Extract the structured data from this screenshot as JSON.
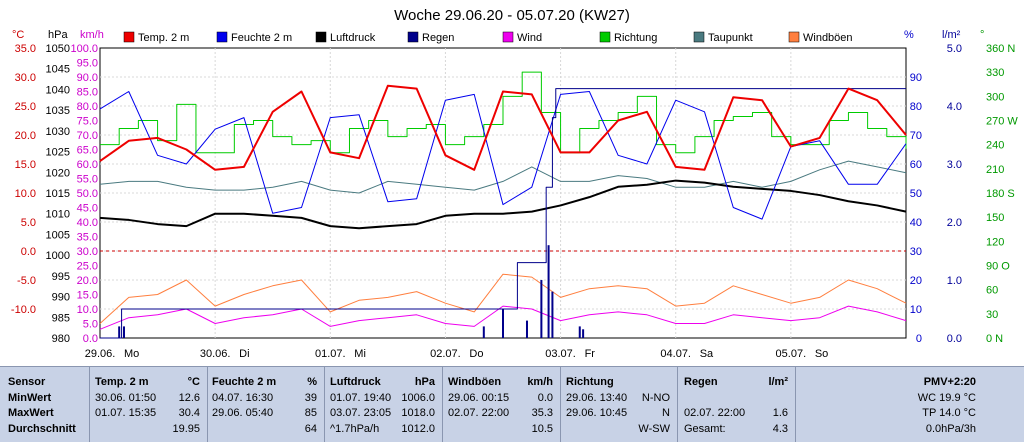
{
  "chart_data": {
    "type": "line",
    "title": "Woche 29.06.20 - 05.07.20 (KW27)",
    "x_labels": [
      "29.06.",
      "Mo",
      "30.06.",
      "Di",
      "01.07.",
      "Mi",
      "02.07.",
      "Do",
      "03.07.",
      "Fr",
      "04.07.",
      "Sa",
      "05.07.",
      "So"
    ],
    "x_range_hours": [
      0,
      168
    ],
    "axes": {
      "temp_c": {
        "unit": "°C",
        "color": "#cc0000",
        "ticks": [
          "35.0",
          "30.0",
          "25.0",
          "20.0",
          "15.0",
          "10.0",
          "5.0",
          "0.0",
          "-5.0",
          "-10.0"
        ],
        "range": [
          -15,
          35
        ]
      },
      "pressure_hpa": {
        "unit": "hPa",
        "color": "#000000",
        "ticks": [
          "1050",
          "1045",
          "1040",
          "1035",
          "1030",
          "1025",
          "1020",
          "1015",
          "1010",
          "1005",
          "1000",
          "995",
          "990",
          "985",
          "980"
        ],
        "range": [
          980,
          1050
        ]
      },
      "wind_kmh": {
        "unit": "km/h",
        "color": "#cc00cc",
        "ticks": [
          "100.0",
          "95.0",
          "90.0",
          "85.0",
          "80.0",
          "75.0",
          "70.0",
          "65.0",
          "60.0",
          "55.0",
          "50.0",
          "45.0",
          "40.0",
          "35.0",
          "30.0",
          "25.0",
          "20.0",
          "15.0",
          "10.0",
          "5.0",
          "0.0"
        ],
        "range": [
          0,
          100
        ]
      },
      "humidity_pct": {
        "unit": "%",
        "color": "#0000cc",
        "ticks": [
          "90",
          "80",
          "70",
          "60",
          "50",
          "40",
          "30",
          "20",
          "10",
          "0"
        ],
        "range": [
          0,
          100
        ]
      },
      "rain_lm2": {
        "unit": "l/m²",
        "color": "#000099",
        "ticks": [
          "5.0",
          "4.0",
          "3.0",
          "2.0",
          "1.0",
          "0.0"
        ],
        "range": [
          0,
          5
        ]
      },
      "direction_deg": {
        "unit": "°",
        "color": "#009900",
        "ticks": [
          "360 N",
          "330",
          "300",
          "270 W",
          "240",
          "210",
          "180 S",
          "150",
          "120",
          "90 O",
          "60",
          "30",
          "0 N"
        ],
        "range": [
          0,
          360
        ]
      }
    },
    "legend": [
      {
        "name": "Temp. 2 m",
        "color": "#ee0000"
      },
      {
        "name": "Feuchte 2 m",
        "color": "#0000ee"
      },
      {
        "name": "Luftdruck",
        "color": "#000000"
      },
      {
        "name": "Regen",
        "color": "#00008b"
      },
      {
        "name": "Wind",
        "color": "#ee00ee"
      },
      {
        "name": "Richtung",
        "color": "#00cc00"
      },
      {
        "name": "Taupunkt",
        "color": "#4a7a80"
      },
      {
        "name": "Windböen",
        "color": "#ff7f3f"
      }
    ],
    "series": [
      {
        "name": "Temp. 2 m",
        "axis": "temp_c",
        "x": [
          0,
          6,
          12,
          18,
          24,
          30,
          36,
          42,
          48,
          54,
          60,
          66,
          72,
          78,
          84,
          90,
          96,
          102,
          108,
          114,
          120,
          126,
          132,
          138,
          144,
          150,
          156,
          162,
          168
        ],
        "values": [
          15.5,
          19,
          19.5,
          17.5,
          14,
          14.5,
          24,
          27.5,
          17,
          16,
          28.5,
          28,
          16.5,
          14,
          27.5,
          27,
          17,
          17,
          22.5,
          24,
          14.5,
          14,
          26.5,
          26,
          18,
          19.5,
          28,
          26,
          20
        ]
      },
      {
        "name": "Feuchte 2 m",
        "axis": "humidity_pct",
        "x": [
          0,
          6,
          12,
          18,
          24,
          30,
          36,
          42,
          48,
          54,
          60,
          66,
          72,
          78,
          84,
          90,
          96,
          102,
          108,
          114,
          120,
          126,
          132,
          138,
          144,
          150,
          156,
          162,
          168
        ],
        "values": [
          79,
          85,
          63,
          60,
          72,
          76,
          43,
          45,
          76,
          77,
          47,
          48,
          82,
          84,
          46,
          52,
          84,
          85,
          63,
          60,
          82,
          78,
          45,
          41,
          66,
          68,
          53,
          53,
          67
        ]
      },
      {
        "name": "Luftdruck",
        "axis": "pressure_hpa",
        "x": [
          0,
          6,
          12,
          18,
          24,
          30,
          36,
          42,
          48,
          54,
          60,
          66,
          72,
          78,
          84,
          90,
          96,
          102,
          108,
          114,
          120,
          126,
          132,
          138,
          144,
          150,
          156,
          162,
          168
        ],
        "values": [
          1009,
          1008.5,
          1007.5,
          1007,
          1010,
          1010,
          1009.5,
          1009,
          1007,
          1006.5,
          1007,
          1007.5,
          1009.5,
          1010,
          1010,
          1010.5,
          1012,
          1014,
          1016.5,
          1017,
          1018,
          1017.5,
          1016.5,
          1016,
          1015.5,
          1014.5,
          1013,
          1012,
          1010.5
        ]
      },
      {
        "name": "Taupunkt",
        "axis": "temp_c",
        "x": [
          0,
          6,
          12,
          18,
          24,
          30,
          36,
          42,
          48,
          54,
          60,
          66,
          72,
          78,
          84,
          90,
          96,
          102,
          108,
          114,
          120,
          126,
          132,
          138,
          144,
          150,
          156,
          162,
          168
        ],
        "values": [
          11.5,
          12,
          12,
          11,
          10.5,
          10.5,
          11,
          12,
          10.5,
          10,
          12,
          11.5,
          11,
          10.5,
          12,
          14.5,
          12,
          12,
          13,
          12.5,
          11,
          11,
          12,
          11,
          12,
          14,
          15.5,
          14.5,
          13.5
        ]
      },
      {
        "name": "Richtung",
        "axis": "direction_deg",
        "x": [
          0,
          4,
          8,
          12,
          16,
          20,
          24,
          28,
          32,
          36,
          40,
          44,
          48,
          52,
          56,
          60,
          64,
          68,
          72,
          76,
          80,
          84,
          88,
          92,
          96,
          100,
          104,
          108,
          112,
          116,
          120,
          124,
          128,
          132,
          136,
          140,
          144,
          148,
          152,
          156,
          160,
          164,
          168
        ],
        "values": [
          240,
          260,
          270,
          245,
          290,
          230,
          230,
          265,
          270,
          250,
          240,
          245,
          230,
          260,
          270,
          250,
          260,
          265,
          240,
          250,
          265,
          300,
          330,
          280,
          230,
          260,
          270,
          280,
          300,
          240,
          230,
          250,
          270,
          275,
          280,
          250,
          240,
          240,
          270,
          280,
          260,
          250,
          235
        ]
      },
      {
        "name": "Windböen",
        "axis": "wind_kmh",
        "x": [
          0,
          6,
          12,
          18,
          24,
          30,
          36,
          42,
          48,
          54,
          60,
          66,
          72,
          78,
          84,
          90,
          96,
          102,
          108,
          114,
          120,
          126,
          132,
          138,
          144,
          150,
          156,
          162,
          168
        ],
        "values": [
          5,
          14,
          15,
          20,
          11,
          15,
          18,
          20,
          9,
          13,
          14,
          16,
          12,
          9,
          22,
          21,
          14,
          17,
          18,
          17,
          11,
          12,
          18,
          15,
          12,
          14,
          20,
          17,
          12
        ]
      },
      {
        "name": "Wind",
        "axis": "wind_kmh",
        "x": [
          0,
          6,
          12,
          18,
          24,
          30,
          36,
          42,
          48,
          54,
          60,
          66,
          72,
          78,
          84,
          90,
          96,
          102,
          108,
          114,
          120,
          126,
          132,
          138,
          144,
          150,
          156,
          162,
          168
        ],
        "values": [
          3,
          7,
          8,
          10,
          5,
          7,
          8,
          10,
          4,
          6,
          7,
          8,
          5,
          4,
          11,
          10,
          6,
          8,
          9,
          8,
          5,
          5,
          8,
          7,
          6,
          7,
          11,
          9,
          6
        ]
      },
      {
        "name": "Regen",
        "axis": "rain_lm2",
        "type": "cumulative",
        "x": [
          0,
          4.5,
          81,
          87,
          90,
          93,
          94.3,
          95,
          168
        ],
        "values": [
          0,
          0.5,
          0.5,
          1.3,
          1.3,
          2.6,
          3.8,
          4.3,
          4.3
        ]
      }
    ],
    "rain_bars": {
      "axis": "rain_lm2",
      "x": [
        4,
        5,
        80,
        84,
        89,
        92,
        93.5,
        94.3,
        100,
        100.7
      ],
      "values": [
        0.2,
        0.2,
        0.2,
        0.5,
        0.3,
        1.0,
        1.6,
        0.8,
        0.2,
        0.15
      ]
    }
  },
  "stats": {
    "headers": {
      "sensor": "Sensor",
      "temp": "Temp. 2 m",
      "temp_unit": "°C",
      "hum": "Feuchte  2 m",
      "hum_unit": "%",
      "press": "Luftdruck",
      "press_unit": "hPa",
      "gust": "Windböen",
      "gust_unit": "km/h",
      "dir": "Richtung",
      "rain": "Regen",
      "rain_unit": "l/m²",
      "pmv": "PMV+2:20"
    },
    "rows": [
      {
        "label": "MinWert",
        "temp_time": "30.06.  01:50",
        "temp_val": "12.6",
        "hum_time": "04.07.  16:30",
        "hum_val": "39",
        "press_time": "01.07.  19:40",
        "press_val": "1006.0",
        "gust_time": "29.06.  00:15",
        "gust_val": "0.0",
        "dir_time": "29.06.  13:40",
        "dir_val": "N-NO",
        "rain_time": "",
        "rain_val": "",
        "pmv": "WC 19.9 °C"
      },
      {
        "label": "MaxWert",
        "temp_time": "01.07.  15:35",
        "temp_val": "30.4",
        "hum_time": "29.06.  05:40",
        "hum_val": "85",
        "press_time": "03.07.  23:05",
        "press_val": "1018.0",
        "gust_time": "02.07.  22:00",
        "gust_val": "35.3",
        "dir_time": "29.06.  10:45",
        "dir_val": "N",
        "rain_time": "02.07.  22:00",
        "rain_val": "1.6",
        "pmv": "TP 14.0 °C"
      },
      {
        "label": "Durchschnitt",
        "temp_time": "",
        "temp_val": "19.95",
        "hum_time": "",
        "hum_val": "64",
        "press_time": "^1.7hPa/h",
        "press_val": "1012.0",
        "gust_time": "",
        "gust_val": "10.5",
        "dir_time": "",
        "dir_val": "W-SW",
        "rain_time": "Gesamt:",
        "rain_val": "4.3",
        "pmv": "0.0hPa/3h"
      }
    ]
  }
}
